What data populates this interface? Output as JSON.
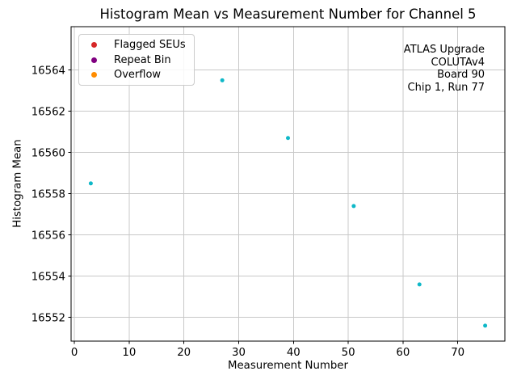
{
  "chart_data": {
    "type": "scatter",
    "title": "Histogram Mean vs Measurement Number for Channel 5",
    "xlabel": "Measurement Number",
    "ylabel": "Histogram Mean",
    "xlim": [
      -0.6,
      78.6
    ],
    "ylim": [
      16550.85,
      16566.1
    ],
    "xticks": [
      0,
      10,
      20,
      30,
      40,
      50,
      60,
      70
    ],
    "yticks": [
      16552,
      16554,
      16556,
      16558,
      16560,
      16562,
      16564
    ],
    "grid": true,
    "series": [
      {
        "name": "Histogram Mean",
        "color": "#0fb8c8",
        "marker_radius": 2.5,
        "x": [
          3,
          27,
          39,
          51,
          63,
          75
        ],
        "y": [
          16558.5,
          16563.5,
          16560.7,
          16557.4,
          16553.6,
          16551.6
        ]
      }
    ],
    "legend": {
      "position": "upper-left",
      "entries": [
        {
          "label": "Flagged SEUs",
          "color": "#d62728"
        },
        {
          "label": "Repeat Bin",
          "color": "#800080"
        },
        {
          "label": "Overflow",
          "color": "#ff8c00"
        }
      ]
    },
    "annotation": {
      "position": "upper-right",
      "lines": [
        "ATLAS Upgrade",
        "COLUTAv4",
        "Board 90",
        "Chip 1, Run 77"
      ]
    }
  },
  "colors": {
    "grid": "#c8c8c8",
    "spine": "#000000",
    "background": "#ffffff",
    "text": "#000000"
  }
}
